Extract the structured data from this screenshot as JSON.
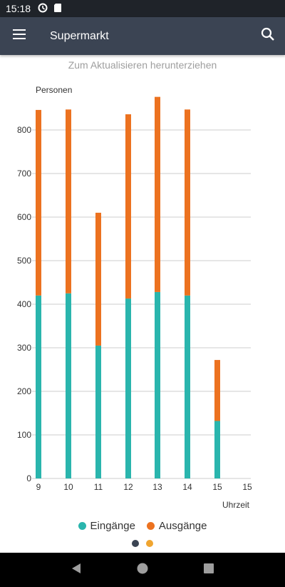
{
  "status_bar": {
    "time": "15:18",
    "icons": [
      "sync-icon",
      "sd-card-icon"
    ]
  },
  "app_bar": {
    "title": "Supermarkt",
    "menu_icon": "hamburger-menu-icon",
    "search_icon": "search-icon"
  },
  "hint": "Zum Aktualisieren herunterziehen",
  "colors": {
    "entries": "#2ab5ad",
    "exits": "#ec7220",
    "grid": "#cccccc",
    "pager_active": "#3b4453",
    "pager_inactive": "#f0a530"
  },
  "chart_data": {
    "type": "bar",
    "stacked": true,
    "ylabel": "Personen",
    "xlabel": "Uhrzeit",
    "ylim": [
      0,
      900
    ],
    "yticks": [
      0,
      100,
      200,
      300,
      400,
      500,
      600,
      700,
      800
    ],
    "categories": [
      "9",
      "10",
      "11",
      "12",
      "13",
      "14",
      "15",
      "15"
    ],
    "series": [
      {
        "name": "Eingänge",
        "color": "#2ab5ad",
        "values": [
          420,
          425,
          305,
          413,
          428,
          420,
          132,
          0
        ]
      },
      {
        "name": "Ausgänge",
        "color": "#ec7220",
        "values": [
          426,
          422,
          305,
          423,
          448,
          427,
          140,
          0
        ]
      }
    ],
    "grid": true,
    "legend": "bottom-center"
  },
  "legend": [
    {
      "label": "Eingänge",
      "color": "#2ab5ad"
    },
    {
      "label": "Ausgänge",
      "color": "#ec7220"
    }
  ],
  "pager": {
    "pages": 2,
    "active": 0
  },
  "nav_bar": {
    "buttons": [
      "back-icon",
      "home-icon",
      "recents-icon"
    ]
  }
}
